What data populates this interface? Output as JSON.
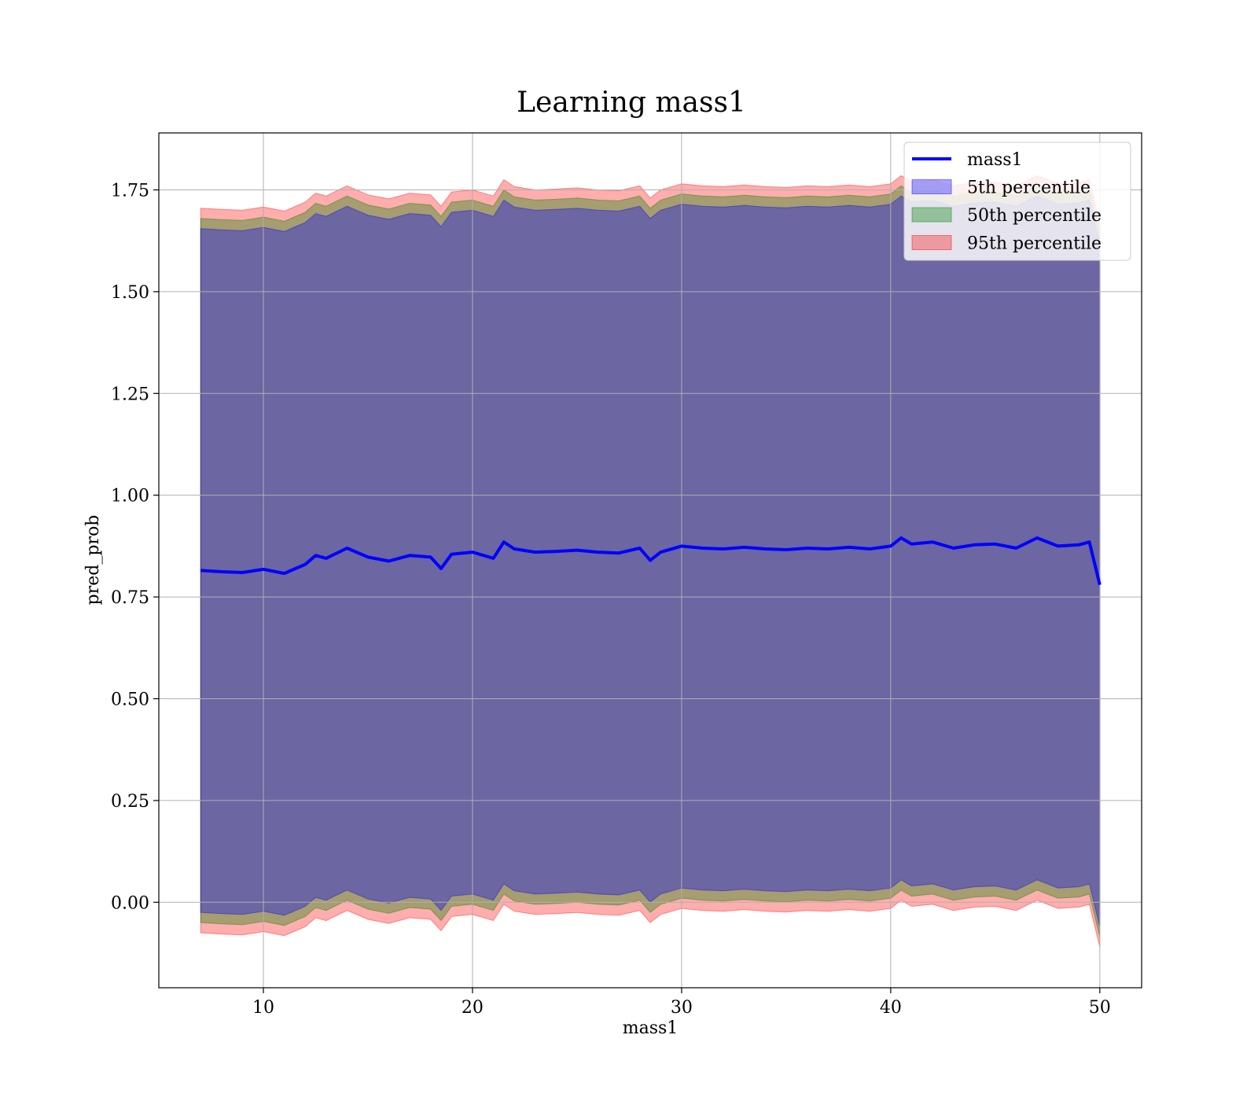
{
  "chart_data": {
    "type": "area",
    "title": "Learning mass1",
    "xlabel": "mass1",
    "ylabel": "pred_prob",
    "xlim": [
      5,
      52
    ],
    "ylim": [
      -0.21,
      1.89
    ],
    "xticks": [
      10,
      20,
      30,
      40,
      50
    ],
    "yticks": [
      0.0,
      0.25,
      0.5,
      0.75,
      1.0,
      1.25,
      1.5,
      1.75
    ],
    "ytick_labels": [
      "0.00",
      "0.25",
      "0.50",
      "0.75",
      "1.00",
      "1.25",
      "1.50",
      "1.75"
    ],
    "grid": true,
    "legend_position": "top-right",
    "x": [
      7,
      8,
      9,
      10,
      11,
      12,
      12.5,
      13,
      14,
      15,
      16,
      17,
      18,
      18.5,
      19,
      20,
      21,
      21.5,
      22,
      23,
      24,
      25,
      26,
      27,
      28,
      28.5,
      29,
      30,
      31,
      32,
      33,
      34,
      35,
      36,
      37,
      38,
      39,
      40,
      40.5,
      41,
      42,
      43,
      44,
      45,
      46,
      47,
      48,
      49,
      49.5,
      50
    ],
    "series": [
      {
        "name": "mass1",
        "kind": "line",
        "color": "#0000ff",
        "values": [
          0.815,
          0.812,
          0.81,
          0.818,
          0.808,
          0.83,
          0.852,
          0.845,
          0.87,
          0.848,
          0.838,
          0.852,
          0.848,
          0.82,
          0.855,
          0.86,
          0.845,
          0.885,
          0.868,
          0.86,
          0.862,
          0.865,
          0.86,
          0.858,
          0.87,
          0.84,
          0.86,
          0.875,
          0.87,
          0.868,
          0.872,
          0.868,
          0.866,
          0.87,
          0.868,
          0.872,
          0.868,
          0.875,
          0.895,
          0.88,
          0.885,
          0.87,
          0.878,
          0.88,
          0.87,
          0.895,
          0.875,
          0.878,
          0.885,
          0.78
        ]
      },
      {
        "name": "5th percentile",
        "kind": "band",
        "color": "#0000ff",
        "opacity": 0.35,
        "upper_offset": 0.84,
        "lower_offset": 0.84
      },
      {
        "name": "50th percentile",
        "kind": "band",
        "color": "#008000",
        "opacity": 0.35,
        "upper_offset": 0.865,
        "lower_offset": 0.865
      },
      {
        "name": "95th percentile",
        "kind": "band",
        "color": "#ff0000",
        "opacity": 0.32,
        "upper_offset": 0.89,
        "lower_offset": 0.89
      }
    ]
  }
}
